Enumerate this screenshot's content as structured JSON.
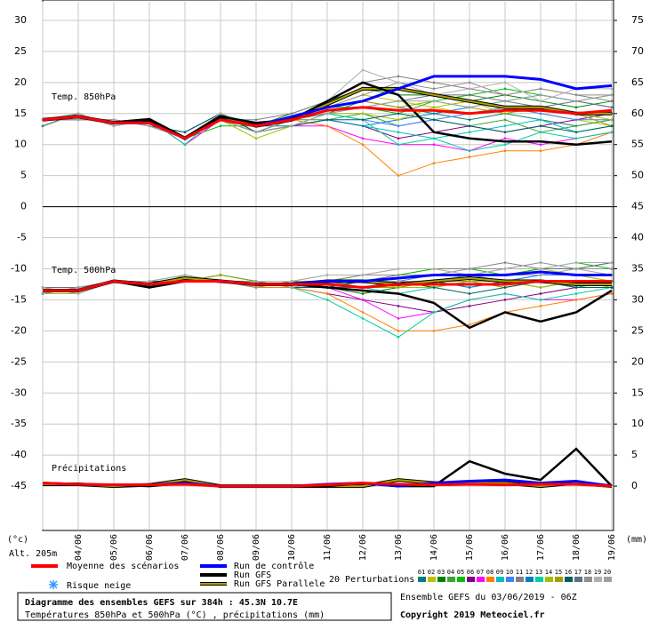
{
  "chart_data": {
    "type": "line",
    "title": "Diagramme des ensembles GEFS sur 384h : 45.3N 10.7E",
    "subtitle": "Températures 850hPa et 500hPa (°C) , précipitations (mm)",
    "run_label": "Ensemble GEFS du 03/06/2019 - 06Z",
    "copyright": "Copyright 2019 Meteociel.fr",
    "altitude": "Alt. 205m",
    "y_label": "(°c)",
    "y2_label": "(mm)",
    "snow_label": "Risque neige",
    "perturbations_label": "20 Perturbations",
    "panels": [
      {
        "label": "Temp. 850hPa",
        "axis": "y"
      },
      {
        "label": "Temp. 500hPa",
        "axis": "y"
      },
      {
        "label": "Précipitations",
        "axis": "y2"
      }
    ],
    "categories": [
      null,
      "04/06",
      "05/06",
      "06/06",
      "07/06",
      "08/06",
      "09/06",
      "10/06",
      "11/06",
      "12/06",
      "13/06",
      "14/06",
      "15/06",
      "16/06",
      "17/06",
      "18/06",
      "19/06"
    ],
    "ylim": [
      -52,
      33
    ],
    "yticks": [
      30,
      25,
      20,
      15,
      10,
      5,
      0,
      -5,
      -10,
      -15,
      -20,
      -25,
      -30,
      -35,
      -40,
      -45
    ],
    "y2lim": [
      -7,
      78
    ],
    "y2ticks": [
      75,
      70,
      65,
      60,
      55,
      50,
      45,
      40,
      35,
      30,
      25,
      20,
      15,
      10,
      5,
      0
    ],
    "grid": true,
    "series": [
      {
        "name": "Moyenne des scénarios",
        "color": "#ff0000",
        "values": [
          [
            14,
            14.5,
            13.5,
            13.5,
            11,
            14,
            13,
            14,
            15.5,
            16,
            15.5,
            15.5,
            15,
            15.5,
            15.5,
            15,
            15.5
          ],
          [
            -13.5,
            -13.5,
            -12,
            -12.5,
            -12,
            -12,
            -12.5,
            -12.5,
            -12.5,
            -13,
            -12.5,
            -12.5,
            -12.5,
            -12.5,
            -12,
            -12,
            -12
          ],
          [
            0.5,
            0.3,
            0.2,
            0.2,
            0.3,
            0,
            0,
            0,
            0.2,
            0.5,
            0.3,
            0.2,
            0.3,
            0.2,
            0.3,
            0.3,
            0
          ]
        ]
      },
      {
        "name": "Run de contrôle",
        "color": "#0000ff",
        "values": [
          [
            14,
            14.5,
            13.5,
            13.5,
            11,
            14,
            13,
            14.5,
            16,
            17,
            19,
            21,
            21,
            21,
            20.5,
            19,
            19.5
          ],
          [
            -13.5,
            -13.5,
            -12,
            -12.5,
            -12,
            -12,
            -12.5,
            -12.5,
            -12,
            -12,
            -11.5,
            -11,
            -11,
            -11,
            -10.5,
            -11,
            -11
          ],
          [
            0.5,
            0.3,
            0.2,
            0.2,
            0.5,
            0,
            0,
            0,
            0.3,
            0.5,
            0,
            0.5,
            0.8,
            1,
            0.5,
            0.8,
            0
          ]
        ]
      },
      {
        "name": "Run GFS",
        "color": "#000000",
        "values": [
          [
            14,
            14.5,
            13.5,
            14,
            11,
            14.5,
            13.5,
            14,
            17,
            20,
            18,
            12,
            11,
            10.5,
            10.5,
            10,
            10.5
          ],
          [
            -13.5,
            -13.5,
            -12,
            -13,
            -12,
            -12,
            -12.5,
            -12.5,
            -13,
            -13.5,
            -14,
            -15.5,
            -19.5,
            -17,
            -18.5,
            -17,
            -13.5
          ],
          [
            0.5,
            0.3,
            0.2,
            0,
            0.5,
            0,
            0,
            0,
            0,
            0.5,
            0,
            0,
            4,
            2,
            1,
            6,
            0
          ]
        ]
      },
      {
        "name": "Run GFS Parallele",
        "color": "#b0a000",
        "values": [
          [
            14,
            14.5,
            13.5,
            14,
            11,
            14.5,
            13,
            14,
            16.5,
            19,
            19,
            18,
            17,
            16,
            16,
            15,
            15
          ],
          [
            -13.5,
            -13.5,
            -12,
            -12.5,
            -11.5,
            -12,
            -12.5,
            -12.5,
            -12,
            -12,
            -12.5,
            -12,
            -11.5,
            -12,
            -12,
            -12.5,
            -12.5
          ],
          [
            0.3,
            0.3,
            0,
            0.2,
            1,
            0,
            0,
            0,
            0,
            0,
            1,
            0.5,
            0.5,
            0.5,
            0,
            0.5,
            0
          ]
        ]
      },
      {
        "name": "01",
        "color": "#008080",
        "values": [
          [
            14,
            15,
            13,
            14,
            11,
            14,
            13,
            13,
            15,
            17,
            16,
            15,
            14,
            15,
            14,
            13,
            14
          ],
          [
            -13,
            -13,
            -12,
            -12,
            -12,
            -12,
            -12,
            -13,
            -13,
            -12,
            -12,
            -12,
            -13,
            -12,
            -11,
            -11,
            -12
          ]
        ]
      },
      {
        "name": "02",
        "color": "#c0c000",
        "values": [
          [
            14,
            14,
            14,
            13,
            11,
            15,
            12,
            14,
            16,
            18,
            17,
            16,
            15,
            16,
            15,
            14,
            13
          ],
          [
            -14,
            -13,
            -12,
            -13,
            -11,
            -12,
            -13,
            -12,
            -12,
            -11,
            -11,
            -10,
            -11,
            -10,
            -10,
            -11,
            -12
          ]
        ]
      },
      {
        "name": "03",
        "color": "#008000",
        "values": [
          [
            13,
            15,
            13,
            14,
            10,
            14,
            13,
            15,
            17,
            19,
            18,
            18,
            17,
            18,
            17,
            16,
            17
          ],
          [
            -13,
            -14,
            -12,
            -12,
            -12,
            -11,
            -12,
            -13,
            -13,
            -14,
            -13,
            -12,
            -11,
            -11,
            -10,
            -10,
            -10
          ]
        ]
      },
      {
        "name": "04",
        "color": "#40a040",
        "values": [
          [
            14,
            14,
            14,
            13,
            12,
            15,
            12,
            14,
            14,
            15,
            13,
            14,
            13,
            14,
            12,
            13,
            14
          ],
          [
            -14,
            -13,
            -12,
            -13,
            -12,
            -12,
            -12,
            -12,
            -12,
            -13,
            -12,
            -13,
            -12,
            -13,
            -12,
            -13,
            -12
          ]
        ]
      },
      {
        "name": "05",
        "color": "#00c000",
        "values": [
          [
            13,
            15,
            13,
            14,
            11,
            13,
            13,
            14,
            16,
            16,
            15,
            17,
            18,
            19,
            18,
            17,
            18
          ],
          [
            -13,
            -13,
            -12,
            -12,
            -11,
            -12,
            -13,
            -12,
            -12,
            -11,
            -11,
            -10,
            -10,
            -11,
            -10,
            -9,
            -10
          ]
        ]
      },
      {
        "name": "06",
        "color": "#800080",
        "values": [
          [
            14,
            14,
            14,
            13,
            11,
            14,
            12,
            13,
            14,
            13,
            11,
            12,
            13,
            12,
            13,
            14,
            15
          ],
          [
            -14,
            -13,
            -12,
            -13,
            -12,
            -12,
            -12,
            -13,
            -14,
            -15,
            -16,
            -17,
            -16,
            -15,
            -14,
            -13,
            -13
          ]
        ]
      },
      {
        "name": "07",
        "color": "#ff00ff",
        "values": [
          [
            14,
            15,
            13,
            14,
            10,
            14,
            12,
            13,
            13,
            11,
            10,
            10,
            9,
            11,
            10,
            11,
            12
          ],
          [
            -13,
            -13,
            -12,
            -12,
            -12,
            -12,
            -12,
            -12,
            -13,
            -15,
            -18,
            -17,
            -15,
            -14,
            -15,
            -15,
            -14
          ]
        ]
      },
      {
        "name": "08",
        "color": "#ff8000",
        "values": [
          [
            14,
            14,
            14,
            13,
            11,
            15,
            13,
            14,
            13,
            10,
            5,
            7,
            8,
            9,
            9,
            10,
            12
          ],
          [
            -14,
            -13,
            -12,
            -13,
            -11,
            -12,
            -13,
            -13,
            -14,
            -17,
            -20,
            -20,
            -19,
            -17,
            -16,
            -15,
            -14
          ]
        ]
      },
      {
        "name": "09",
        "color": "#00c0c0",
        "values": [
          [
            13,
            15,
            13,
            14,
            11,
            14,
            12,
            13,
            14,
            13,
            12,
            11,
            12,
            13,
            14,
            12,
            13
          ],
          [
            -13,
            -14,
            -12,
            -12,
            -12,
            -11,
            -12,
            -12,
            -13,
            -13,
            -14,
            -13,
            -12,
            -12,
            -12,
            -13,
            -12
          ]
        ]
      },
      {
        "name": "10",
        "color": "#4080ff",
        "values": [
          [
            14,
            14,
            14,
            13,
            12,
            15,
            13,
            14,
            15,
            14,
            13,
            14,
            15,
            16,
            15,
            14,
            14
          ],
          [
            -14,
            -13,
            -12,
            -13,
            -12,
            -12,
            -12,
            -13,
            -12,
            -12,
            -12,
            -11,
            -11,
            -12,
            -11,
            -11,
            -11
          ]
        ]
      },
      {
        "name": "11",
        "color": "#808080",
        "values": [
          [
            14,
            15,
            13,
            14,
            11,
            14,
            14,
            15,
            17,
            20,
            21,
            20,
            19,
            18,
            19,
            18,
            17
          ],
          [
            -13,
            -13,
            -12,
            -12,
            -12,
            -12,
            -13,
            -12,
            -11,
            -11,
            -10,
            -10,
            -10,
            -9,
            -10,
            -10,
            -9
          ]
        ]
      },
      {
        "name": "12",
        "color": "#0080c0",
        "values": [
          [
            14,
            14,
            14,
            13,
            11,
            14,
            12,
            13,
            14,
            13,
            14,
            15,
            16,
            17,
            18,
            17,
            16
          ],
          [
            -14,
            -13,
            -12,
            -13,
            -12,
            -12,
            -12,
            -12,
            -13,
            -13,
            -12,
            -12,
            -13,
            -12,
            -13,
            -12,
            -12
          ]
        ]
      },
      {
        "name": "13",
        "color": "#00d0a0",
        "values": [
          [
            13,
            15,
            13,
            14,
            10,
            15,
            13,
            14,
            15,
            14,
            10,
            11,
            9,
            10,
            12,
            11,
            12
          ],
          [
            -13,
            -13,
            -12,
            -12,
            -11,
            -12,
            -12,
            -13,
            -15,
            -18,
            -21,
            -17,
            -15,
            -14,
            -15,
            -14,
            -13
          ]
        ]
      },
      {
        "name": "14",
        "color": "#a0c000",
        "values": [
          [
            14,
            14,
            14,
            13,
            11,
            14,
            11,
            13,
            15,
            15,
            14,
            16,
            17,
            15,
            16,
            15,
            14
          ],
          [
            -14,
            -14,
            -12,
            -13,
            -12,
            -12,
            -13,
            -12,
            -12,
            -12,
            -13,
            -13,
            -12,
            -12,
            -13,
            -12,
            -13
          ]
        ]
      },
      {
        "name": "15",
        "color": "#a0a000",
        "values": [
          [
            14,
            15,
            13,
            14,
            11,
            14,
            13,
            14,
            16,
            17,
            16,
            17,
            16,
            15,
            16,
            15,
            13
          ],
          [
            -13,
            -13,
            -12,
            -12,
            -12,
            -11,
            -12,
            -12,
            -12,
            -13,
            -13,
            -12,
            -12,
            -13,
            -12,
            -12,
            -12
          ]
        ]
      },
      {
        "name": "16",
        "color": "#006060",
        "values": [
          [
            14,
            14,
            14,
            13,
            12,
            15,
            12,
            13,
            14,
            14,
            15,
            14,
            13,
            12,
            13,
            12,
            13
          ],
          [
            -14,
            -13,
            -12,
            -13,
            -12,
            -12,
            -12,
            -13,
            -13,
            -12,
            -12,
            -13,
            -14,
            -13,
            -12,
            -13,
            -13
          ]
        ]
      },
      {
        "name": "17",
        "color": "#607080",
        "values": [
          [
            13,
            15,
            13,
            14,
            11,
            14,
            13,
            14,
            15,
            16,
            17,
            18,
            18,
            17,
            16,
            17,
            16
          ],
          [
            -13,
            -13,
            -12,
            -12,
            -12,
            -12,
            -12,
            -12,
            -12,
            -12,
            -11,
            -11,
            -11,
            -10,
            -10,
            -10,
            -9
          ]
        ]
      },
      {
        "name": "18",
        "color": "#909090",
        "values": [
          [
            14,
            14,
            14,
            13,
            11,
            14,
            12,
            14,
            16,
            18,
            20,
            19,
            20,
            18,
            19,
            18,
            18
          ],
          [
            -14,
            -13,
            -12,
            -13,
            -12,
            -12,
            -13,
            -12,
            -12,
            -11,
            -11,
            -11,
            -10,
            -10,
            -9,
            -10,
            -10
          ]
        ]
      },
      {
        "name": "19",
        "color": "#b0b0b0",
        "values": [
          [
            14,
            15,
            13,
            14,
            11,
            15,
            13,
            14,
            17,
            22,
            20,
            18,
            19,
            20,
            17,
            19,
            19
          ],
          [
            -13,
            -14,
            -12,
            -12,
            -11,
            -12,
            -12,
            -12,
            -11,
            -11,
            -10,
            -10,
            -11,
            -10,
            -10,
            -9,
            -9
          ]
        ]
      },
      {
        "name": "20",
        "color": "#a0a0a0",
        "values": [
          [
            14,
            14,
            14,
            13,
            11,
            14,
            12,
            13,
            15,
            16,
            17,
            17,
            16,
            17,
            18,
            17,
            18
          ],
          [
            -14,
            -13,
            -12,
            -13,
            -12,
            -12,
            -12,
            -13,
            -12,
            -12,
            -12,
            -12,
            -11,
            -11,
            -11,
            -10,
            -11
          ]
        ]
      }
    ]
  }
}
